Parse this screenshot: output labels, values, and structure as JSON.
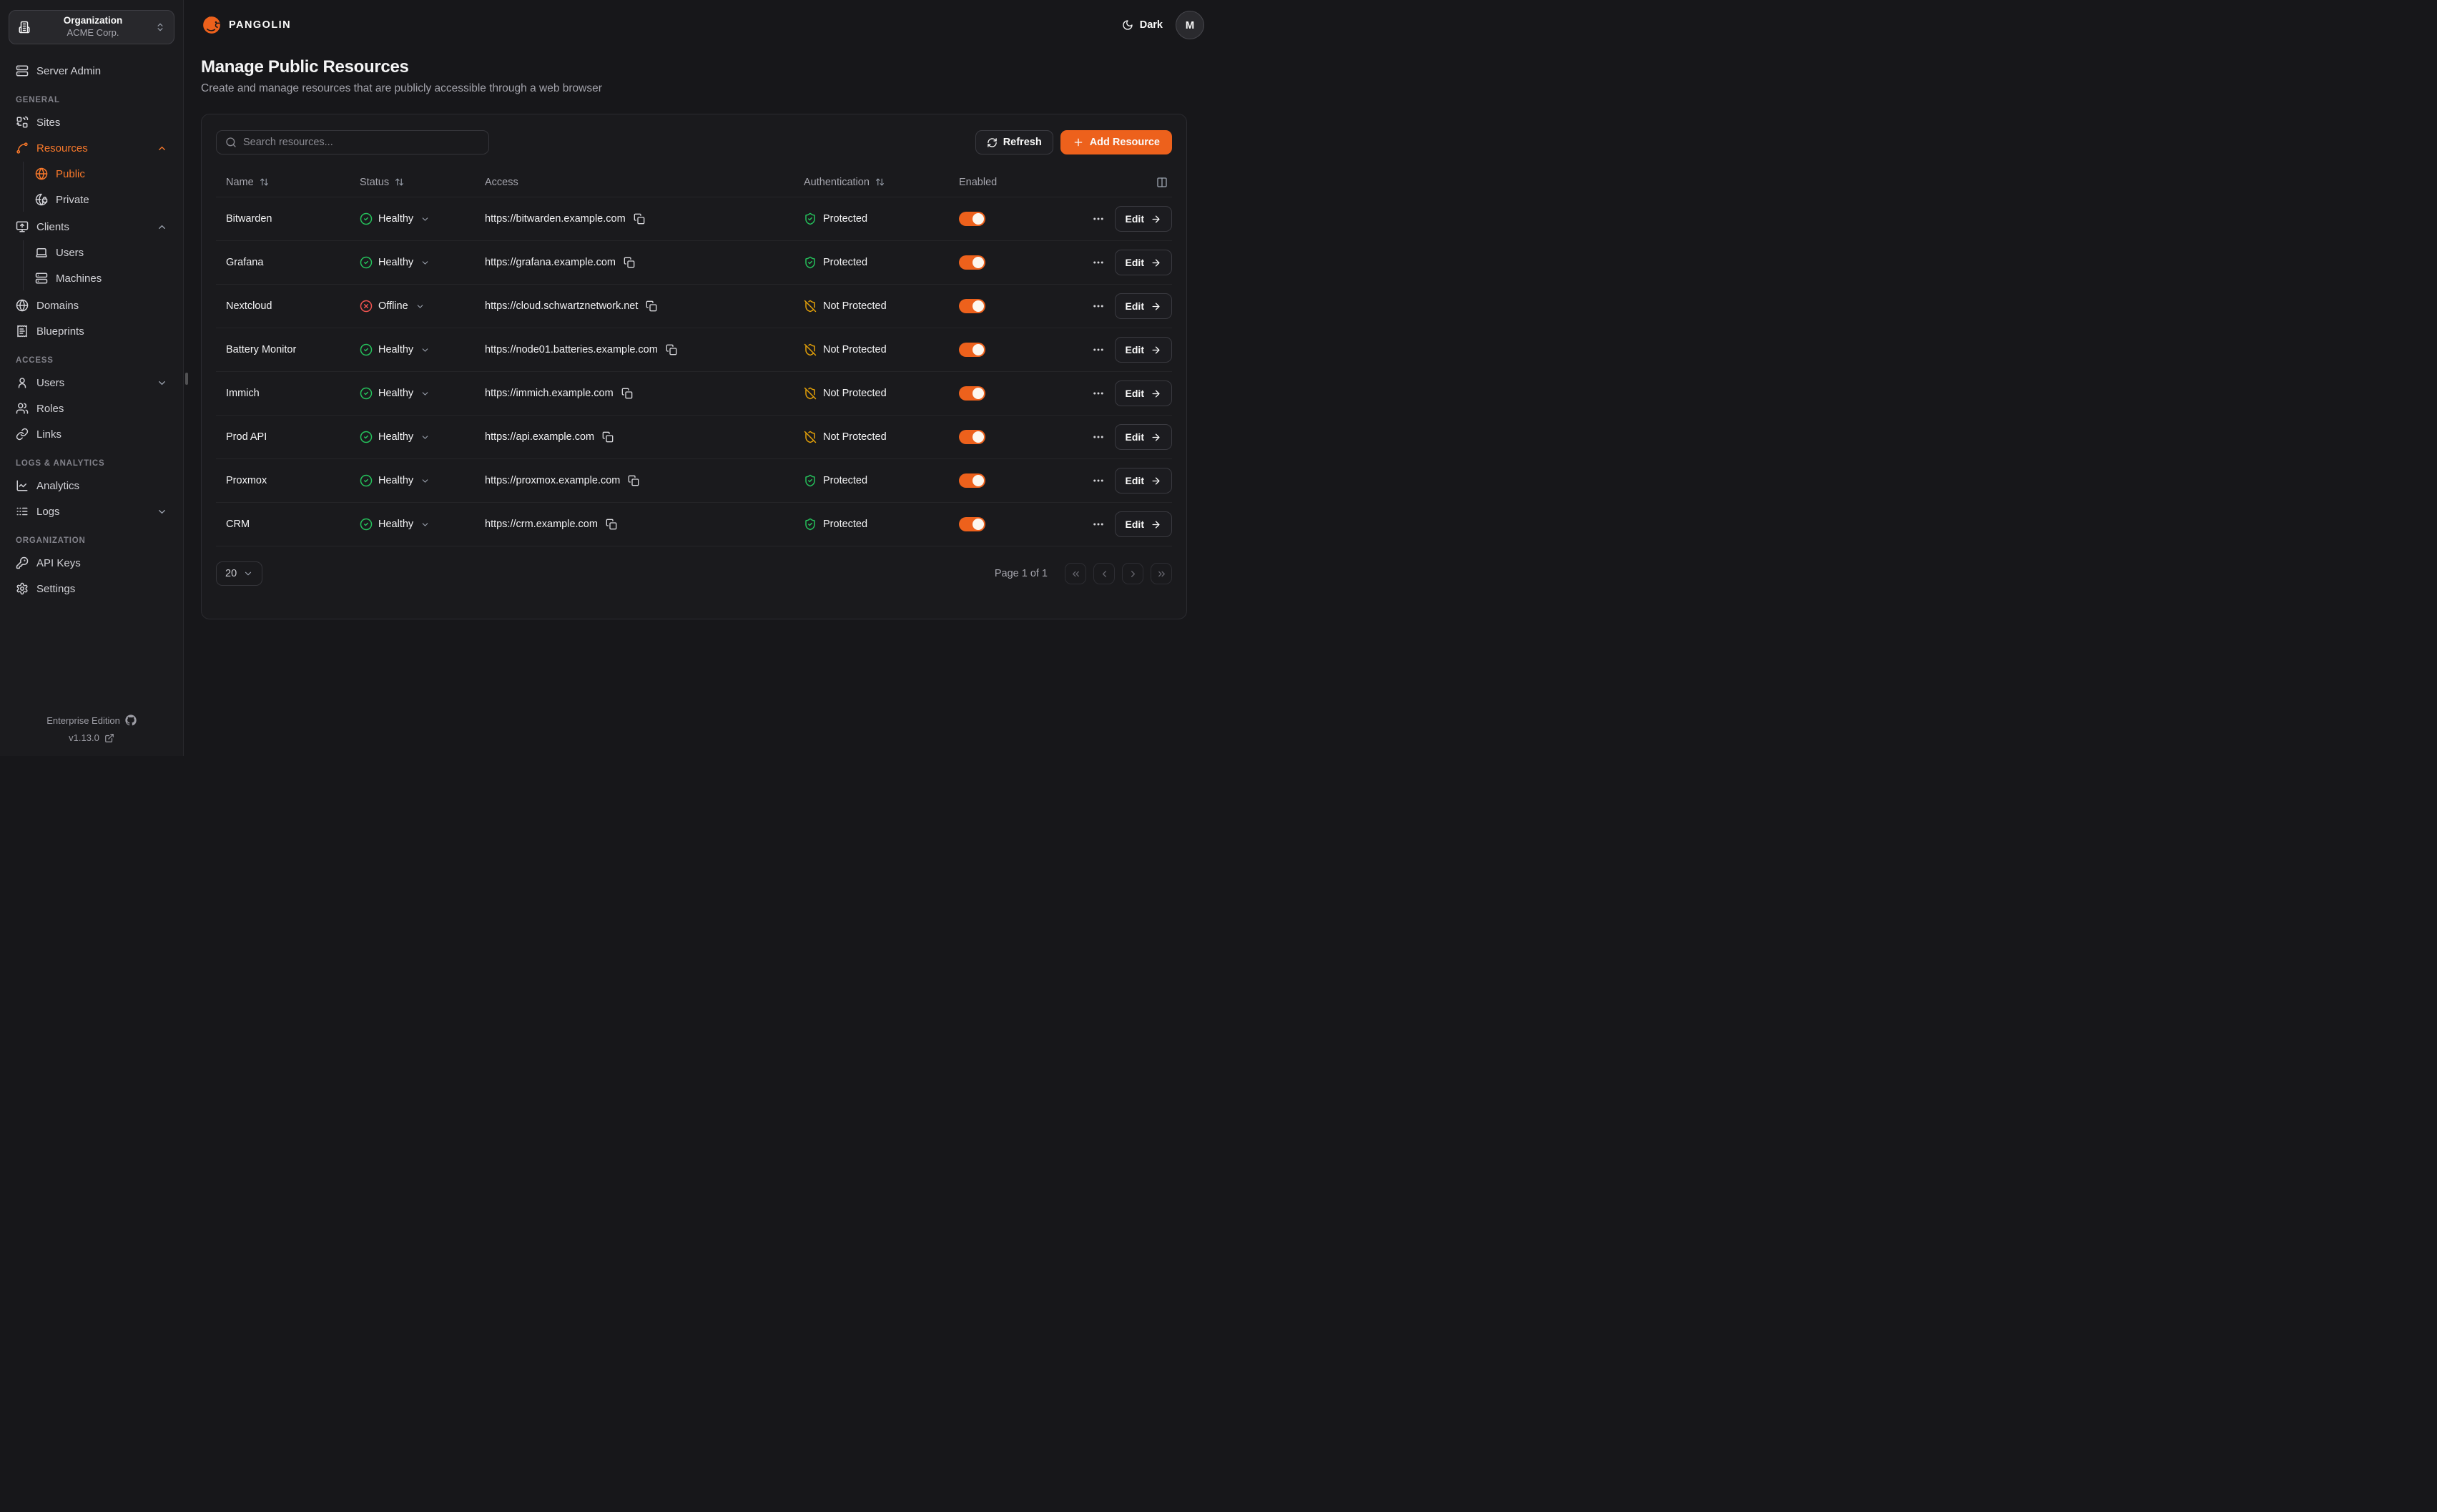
{
  "theme": {
    "accent": "#ed611c",
    "accent_light": "#f8782a",
    "green": "#25c05b",
    "red": "#ef5350",
    "amber": "#e3a008"
  },
  "org_selector": {
    "label": "Organization",
    "value": "ACME Corp."
  },
  "topbar": {
    "brand": "PANGOLIN",
    "theme_toggle_label": "Dark",
    "avatar_initial": "M"
  },
  "page": {
    "title": "Manage Public Resources",
    "subtitle": "Create and manage resources that are publicly accessible through a web browser"
  },
  "sidebar": {
    "sections": [
      {
        "header": "",
        "items": [
          {
            "label": "Server Admin",
            "icon": "server"
          }
        ]
      },
      {
        "header": "GENERAL",
        "items": [
          {
            "label": "Sites",
            "icon": "sites"
          },
          {
            "label": "Resources",
            "icon": "spline",
            "active": true,
            "chevron": "up",
            "children": [
              {
                "label": "Public",
                "icon": "globe",
                "active": true
              },
              {
                "label": "Private",
                "icon": "globe-lock"
              }
            ]
          },
          {
            "label": "Clients",
            "icon": "monitor-up",
            "chevron": "up",
            "children": [
              {
                "label": "Users",
                "icon": "laptop"
              },
              {
                "label": "Machines",
                "icon": "server"
              }
            ]
          },
          {
            "label": "Domains",
            "icon": "globe"
          },
          {
            "label": "Blueprints",
            "icon": "receipt"
          }
        ]
      },
      {
        "header": "ACCESS",
        "items": [
          {
            "label": "Users",
            "icon": "user",
            "chevron": "down"
          },
          {
            "label": "Roles",
            "icon": "users"
          },
          {
            "label": "Links",
            "icon": "link"
          }
        ]
      },
      {
        "header": "LOGS & ANALYTICS",
        "items": [
          {
            "label": "Analytics",
            "icon": "chart"
          },
          {
            "label": "Logs",
            "icon": "logs",
            "chevron": "down"
          }
        ]
      },
      {
        "header": "ORGANIZATION",
        "items": [
          {
            "label": "API Keys",
            "icon": "key"
          },
          {
            "label": "Settings",
            "icon": "gear"
          }
        ]
      }
    ],
    "footer": {
      "edition": "Enterprise Edition",
      "version": "v1.13.0"
    }
  },
  "toolbar": {
    "search_placeholder": "Search resources...",
    "refresh_label": "Refresh",
    "add_label": "Add Resource"
  },
  "table": {
    "columns": [
      {
        "label": "Name",
        "sortable": true
      },
      {
        "label": "Status",
        "sortable": true
      },
      {
        "label": "Access",
        "sortable": false
      },
      {
        "label": "Authentication",
        "sortable": true
      },
      {
        "label": "Enabled",
        "sortable": false
      }
    ],
    "edit_label": "Edit",
    "rows": [
      {
        "name": "Bitwarden",
        "status": "Healthy",
        "status_kind": "healthy",
        "url": "https://bitwarden.example.com",
        "auth": "Protected",
        "auth_kind": "protected",
        "enabled": true
      },
      {
        "name": "Grafana",
        "status": "Healthy",
        "status_kind": "healthy",
        "url": "https://grafana.example.com",
        "auth": "Protected",
        "auth_kind": "protected",
        "enabled": true
      },
      {
        "name": "Nextcloud",
        "status": "Offline",
        "status_kind": "offline",
        "url": "https://cloud.schwartznetwork.net",
        "auth": "Not Protected",
        "auth_kind": "unprotected",
        "enabled": true
      },
      {
        "name": "Battery Monitor",
        "status": "Healthy",
        "status_kind": "healthy",
        "url": "https://node01.batteries.example.com",
        "auth": "Not Protected",
        "auth_kind": "unprotected",
        "enabled": true
      },
      {
        "name": "Immich",
        "status": "Healthy",
        "status_kind": "healthy",
        "url": "https://immich.example.com",
        "auth": "Not Protected",
        "auth_kind": "unprotected",
        "enabled": true
      },
      {
        "name": "Prod API",
        "status": "Healthy",
        "status_kind": "healthy",
        "url": "https://api.example.com",
        "auth": "Not Protected",
        "auth_kind": "unprotected",
        "enabled": true
      },
      {
        "name": "Proxmox",
        "status": "Healthy",
        "status_kind": "healthy",
        "url": "https://proxmox.example.com",
        "auth": "Protected",
        "auth_kind": "protected",
        "enabled": true
      },
      {
        "name": "CRM",
        "status": "Healthy",
        "status_kind": "healthy",
        "url": "https://crm.example.com",
        "auth": "Protected",
        "auth_kind": "protected",
        "enabled": true
      }
    ]
  },
  "pagination": {
    "page_size": "20",
    "info": "Page 1 of 1"
  }
}
